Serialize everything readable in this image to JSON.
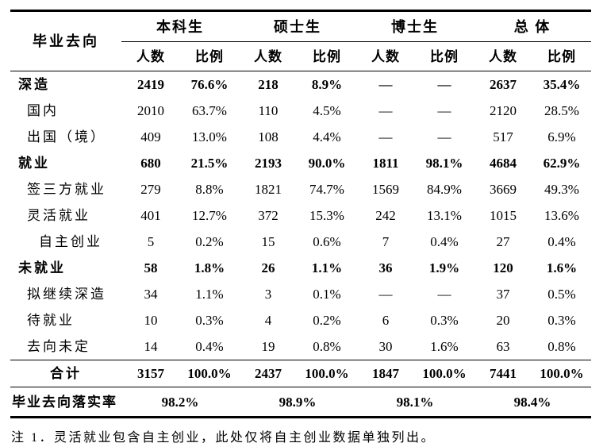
{
  "table": {
    "corner_label": "毕业去向",
    "groups": [
      {
        "label": "本科生"
      },
      {
        "label": "硕士生"
      },
      {
        "label": "博士生"
      },
      {
        "label": "总 体"
      }
    ],
    "subheaders": [
      "人数",
      "比例"
    ],
    "rows": [
      {
        "label": "深造",
        "indent": 0,
        "bold": true,
        "values": [
          "2419",
          "76.6%",
          "218",
          "8.9%",
          "—",
          "—",
          "2637",
          "35.4%"
        ]
      },
      {
        "label": "国内",
        "indent": 1,
        "bold": false,
        "values": [
          "2010",
          "63.7%",
          "110",
          "4.5%",
          "—",
          "—",
          "2120",
          "28.5%"
        ]
      },
      {
        "label": "出国（境）",
        "indent": 1,
        "bold": false,
        "values": [
          "409",
          "13.0%",
          "108",
          "4.4%",
          "—",
          "—",
          "517",
          "6.9%"
        ]
      },
      {
        "label": "就业",
        "indent": 0,
        "bold": true,
        "values": [
          "680",
          "21.5%",
          "2193",
          "90.0%",
          "1811",
          "98.1%",
          "4684",
          "62.9%"
        ]
      },
      {
        "label": "签三方就业",
        "indent": 1,
        "bold": false,
        "values": [
          "279",
          "8.8%",
          "1821",
          "74.7%",
          "1569",
          "84.9%",
          "3669",
          "49.3%"
        ]
      },
      {
        "label": "灵活就业",
        "indent": 1,
        "bold": false,
        "values": [
          "401",
          "12.7%",
          "372",
          "15.3%",
          "242",
          "13.1%",
          "1015",
          "13.6%"
        ]
      },
      {
        "label": "自主创业",
        "indent": 2,
        "bold": false,
        "values": [
          "5",
          "0.2%",
          "15",
          "0.6%",
          "7",
          "0.4%",
          "27",
          "0.4%"
        ]
      },
      {
        "label": "未就业",
        "indent": 0,
        "bold": true,
        "values": [
          "58",
          "1.8%",
          "26",
          "1.1%",
          "36",
          "1.9%",
          "120",
          "1.6%"
        ]
      },
      {
        "label": "拟继续深造",
        "indent": 1,
        "bold": false,
        "values": [
          "34",
          "1.1%",
          "3",
          "0.1%",
          "—",
          "—",
          "37",
          "0.5%"
        ]
      },
      {
        "label": "待就业",
        "indent": 1,
        "bold": false,
        "values": [
          "10",
          "0.3%",
          "4",
          "0.2%",
          "6",
          "0.3%",
          "20",
          "0.3%"
        ]
      },
      {
        "label": "去向未定",
        "indent": 1,
        "bold": false,
        "values": [
          "14",
          "0.4%",
          "19",
          "0.8%",
          "30",
          "1.6%",
          "63",
          "0.8%"
        ]
      }
    ],
    "total_row": {
      "label": "合计",
      "values": [
        "3157",
        "100.0%",
        "2437",
        "100.0%",
        "1847",
        "100.0%",
        "7441",
        "100.0%"
      ]
    },
    "rate_row": {
      "label": "毕业去向落实率",
      "values": [
        "98.2%",
        "98.9%",
        "98.1%",
        "98.4%"
      ]
    }
  },
  "note": "注 1．灵活就业包含自主创业，此处仅将自主创业数据单独列出。"
}
